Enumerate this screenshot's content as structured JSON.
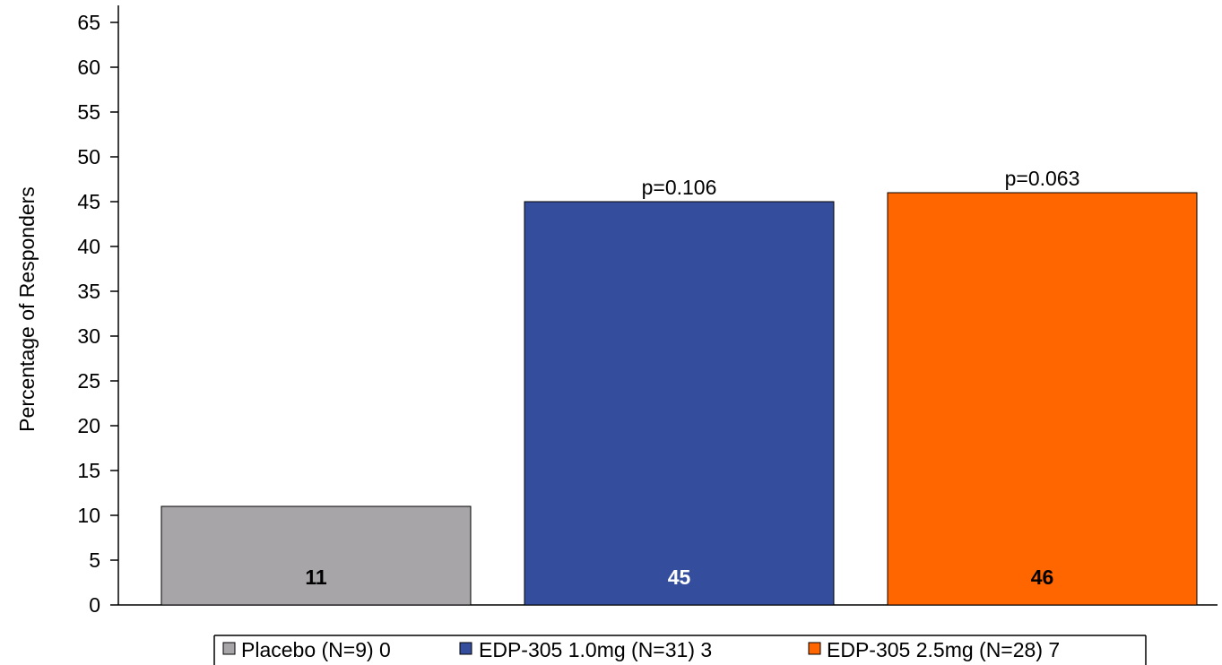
{
  "chart_data": {
    "type": "bar",
    "title": "",
    "xlabel": "",
    "ylabel": "Percentage of Responders",
    "ylim": [
      0,
      65
    ],
    "yticks": [
      0,
      5,
      10,
      15,
      20,
      25,
      30,
      35,
      40,
      45,
      50,
      55,
      60,
      65
    ],
    "grid": false,
    "legend_position": "bottom",
    "bars": [
      {
        "legend_label": "Placebo (N=9) 0",
        "value": 11,
        "value_label": "11",
        "annotation": "",
        "color": "#a7a5a8",
        "value_label_color": "#000000"
      },
      {
        "legend_label": "EDP-305 1.0mg (N=31) 3",
        "value": 45,
        "value_label": "45",
        "annotation": "p=0.106",
        "color": "#344e9d",
        "value_label_color": "#ffffff"
      },
      {
        "legend_label": "EDP-305 2.5mg (N=28) 7",
        "value": 46,
        "value_label": "46",
        "annotation": "p=0.063",
        "color": "#ff6600",
        "value_label_color": "#000000"
      }
    ]
  }
}
